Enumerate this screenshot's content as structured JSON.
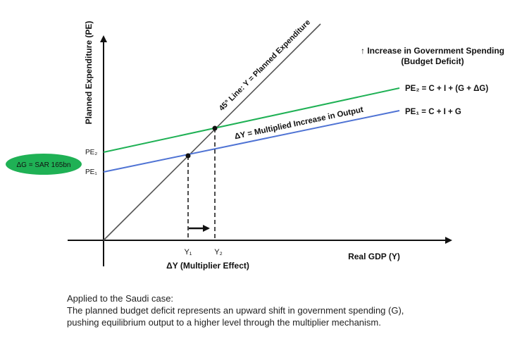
{
  "axes": {
    "y_label": "Planned Expenditure (PE)",
    "x_label": "Real GDP (Y)"
  },
  "curves": {
    "line45_label": "45° Line: Y = Planned Expenditure",
    "pe2_label": "PE₂ = C + I + (G + ΔG)",
    "pe1_label": "PE₁ = C + I + G",
    "pe2_colour": "#1fb155",
    "pe1_colour": "#4f73d4",
    "line45_colour": "#555555"
  },
  "ticks": {
    "pe2": "PE₂",
    "pe1": "PE₁",
    "y1": "Y₁",
    "y2": "Y₂"
  },
  "annotations": {
    "title_line1": "↑ Increase in Government Spending",
    "title_line2": "(Budget Deficit)",
    "delta_y_output": "ΔY = Multiplied Increase in Output",
    "multiplier_effect": "ΔY (Multiplier Effect)",
    "delta_g_badge": "ΔG = SAR 165bn",
    "badge_colour": "#1fb155"
  },
  "caption": {
    "line1": "Applied to the Saudi case:",
    "line2": "The planned budget deficit represents an upward shift in government spending (G),",
    "line3": "pushing equilibrium output to a higher level through the multiplier mechanism."
  }
}
